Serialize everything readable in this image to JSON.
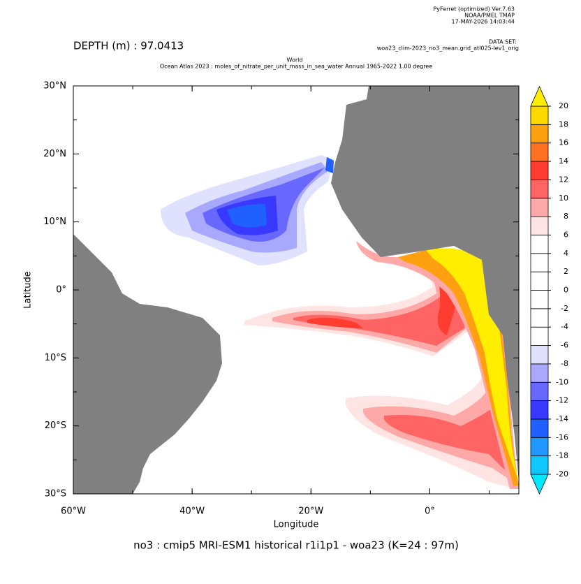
{
  "header": {
    "software": "PyFerret (optimized) Ver.7.63",
    "org": "NOAA/PMEL TMAP",
    "date": "17-MAY-2026 14:03:44",
    "dataset_label": "DATA SET:",
    "dataset": "woa23_clim-2023_no3_mean.grid_atl025-lev1_orig"
  },
  "depth_label": "DEPTH (m) : 97.0413",
  "title_line1": "World",
  "title_line2": "Ocean Atlas 2023 : moles_of_nitrate_per_unit_mass_in_sea_water Annual 1965-2022 1.00 degree",
  "map": {
    "xlim": [
      -60,
      15
    ],
    "ylim": [
      -30,
      30
    ],
    "xticks": [
      {
        "value": -60,
        "label": "60°W"
      },
      {
        "value": -40,
        "label": "40°W"
      },
      {
        "value": -20,
        "label": "20°W"
      },
      {
        "value": 0,
        "label": "0°"
      }
    ],
    "yticks": [
      {
        "value": 30,
        "label": "30°N"
      },
      {
        "value": 20,
        "label": "20°N"
      },
      {
        "value": 10,
        "label": "10°N"
      },
      {
        "value": 0,
        "label": "0°"
      },
      {
        "value": -10,
        "label": "10°S"
      },
      {
        "value": -20,
        "label": "20°S"
      },
      {
        "value": -30,
        "label": "30°S"
      }
    ],
    "xlabel": "Longitude",
    "ylabel": "Latitude"
  },
  "colorbar": {
    "levels": [
      -20,
      -18,
      -16,
      -14,
      -12,
      -10,
      -8,
      -6,
      -4,
      -2,
      0,
      2,
      4,
      6,
      8,
      10,
      12,
      14,
      16,
      18,
      20
    ],
    "colors": [
      "#10c8ff",
      "#2098ff",
      "#2060ff",
      "#3838ff",
      "#6868ff",
      "#a8a8ff",
      "#e0e0ff",
      "#ffffff",
      "#ffffff",
      "#ffffff",
      "#ffffff",
      "#ffffff",
      "#ffffff",
      "#ffe4e4",
      "#ffa8a8",
      "#ff6464",
      "#ff3c30",
      "#ff7020",
      "#ffa010",
      "#ffd800"
    ],
    "under_color": "#00e8ff",
    "over_color": "#ffee00"
  },
  "caption": "no3 : cmip5 MRI-ESM1 historical r1i1p1 - woa23  (K=24 : 97m)"
}
